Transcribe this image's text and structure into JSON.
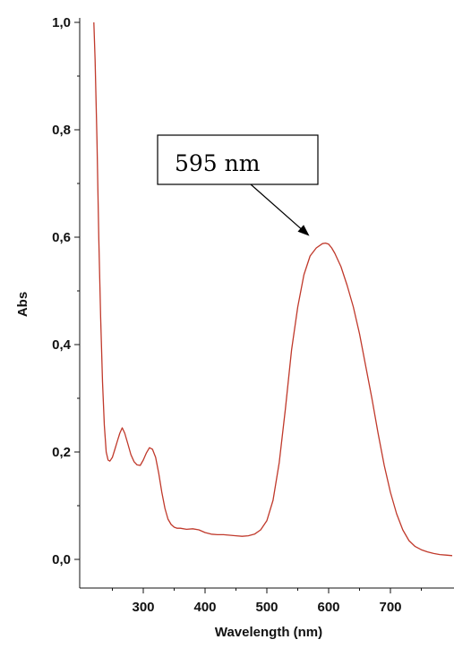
{
  "chart_data": {
    "type": "line",
    "xlabel": "Wavelength (nm)",
    "ylabel": "Abs",
    "xlim": [
      210,
      800
    ],
    "ylim": [
      0.0,
      1.0
    ],
    "x_ticks": [
      300,
      400,
      500,
      600,
      700
    ],
    "x_tick_labels": [
      "300",
      "400",
      "500",
      "600",
      "700"
    ],
    "y_ticks": [
      0.0,
      0.2,
      0.4,
      0.6,
      0.8,
      1.0
    ],
    "y_tick_labels": [
      "0,0",
      "0,2",
      "0,4",
      "0,6",
      "0,8",
      "1,0"
    ],
    "grid": false,
    "series": [
      {
        "color": "#c0392b",
        "x": [
          220,
          222,
          225,
          228,
          231,
          234,
          237,
          240,
          243,
          246,
          250,
          254,
          258,
          262,
          266,
          270,
          275,
          280,
          285,
          290,
          295,
          300,
          305,
          310,
          315,
          320,
          325,
          330,
          335,
          340,
          345,
          350,
          355,
          360,
          370,
          380,
          390,
          400,
          410,
          420,
          430,
          440,
          450,
          460,
          470,
          480,
          490,
          500,
          510,
          520,
          530,
          540,
          550,
          560,
          570,
          580,
          590,
          595,
          600,
          605,
          610,
          620,
          630,
          640,
          650,
          660,
          670,
          680,
          690,
          700,
          710,
          720,
          730,
          740,
          750,
          760,
          770,
          780,
          790,
          800
        ],
        "y": [
          1.0,
          0.93,
          0.78,
          0.6,
          0.45,
          0.33,
          0.25,
          0.2,
          0.185,
          0.183,
          0.19,
          0.205,
          0.22,
          0.235,
          0.245,
          0.235,
          0.215,
          0.195,
          0.182,
          0.176,
          0.175,
          0.185,
          0.198,
          0.208,
          0.205,
          0.19,
          0.16,
          0.125,
          0.095,
          0.075,
          0.065,
          0.06,
          0.058,
          0.058,
          0.056,
          0.057,
          0.055,
          0.05,
          0.047,
          0.046,
          0.046,
          0.045,
          0.044,
          0.043,
          0.044,
          0.047,
          0.055,
          0.072,
          0.11,
          0.18,
          0.28,
          0.39,
          0.47,
          0.53,
          0.565,
          0.58,
          0.588,
          0.589,
          0.587,
          0.58,
          0.57,
          0.545,
          0.51,
          0.47,
          0.42,
          0.36,
          0.3,
          0.235,
          0.175,
          0.125,
          0.085,
          0.055,
          0.035,
          0.024,
          0.018,
          0.014,
          0.011,
          0.009,
          0.008,
          0.007
        ]
      }
    ],
    "annotations": [
      {
        "text": "595 nm",
        "target_x": 595,
        "target_y": 0.589
      }
    ]
  }
}
